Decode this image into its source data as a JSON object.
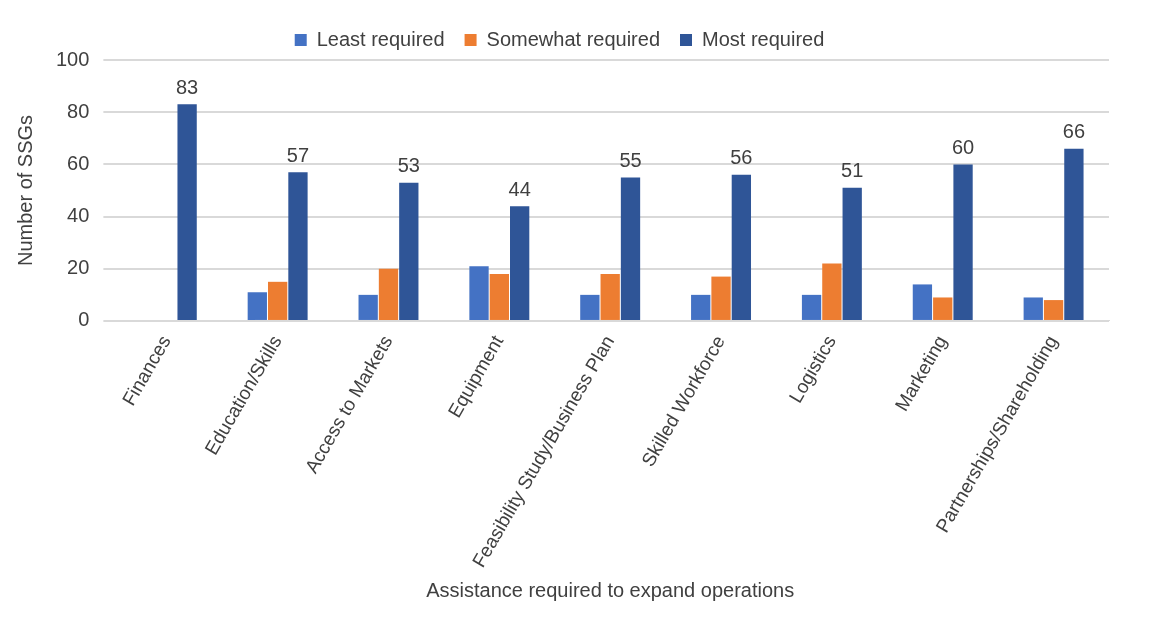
{
  "chart_data": {
    "type": "bar",
    "xlabel": "Assistance required to expand operations",
    "ylabel": "Number of SSGs",
    "categories": [
      "Finances",
      "Education/Skills",
      "Access to Markets",
      "Equipment",
      "Feasibility Study/Business Plan",
      "Skilled Workforce",
      "Logistics",
      "Marketing",
      "Partnerships/Shareholding"
    ],
    "series": [
      {
        "name": "Least required",
        "color": "#4472c4",
        "values": [
          0,
          11,
          10,
          21,
          10,
          10,
          10,
          14,
          9
        ]
      },
      {
        "name": "Somewhat required",
        "color": "#ed7d31",
        "values": [
          0,
          15,
          20,
          18,
          18,
          17,
          22,
          9,
          8
        ]
      },
      {
        "name": "Most required",
        "color": "#2f5597",
        "values": [
          83,
          57,
          53,
          44,
          55,
          56,
          51,
          60,
          66
        ],
        "value_labels": [
          "83",
          "57",
          "53",
          "44",
          "55",
          "56",
          "51",
          "60",
          "66"
        ]
      }
    ],
    "ylim": [
      0,
      100
    ],
    "yticks": [
      0,
      20,
      40,
      60,
      80,
      100
    ],
    "grid": "y",
    "legend": "top"
  }
}
